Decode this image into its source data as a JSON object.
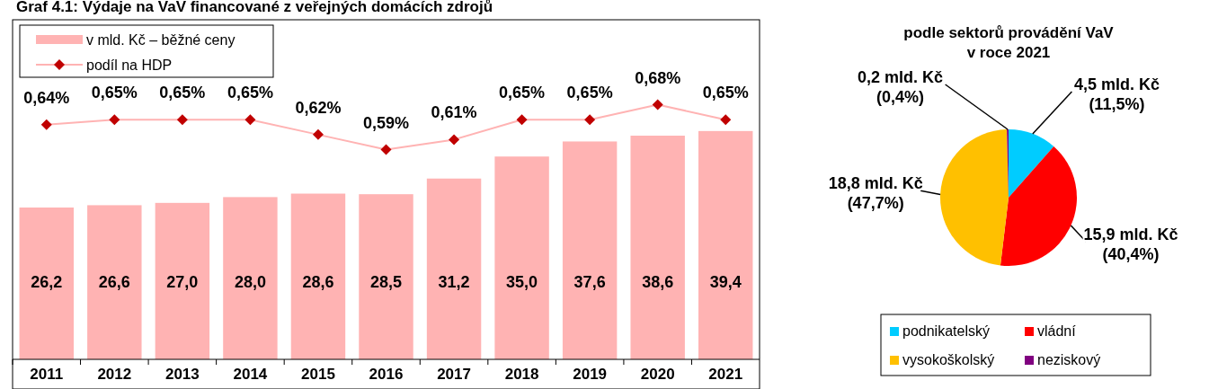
{
  "chart_data": [
    {
      "type": "bar",
      "title": "Graf 4.1: Výdaje na VaV financované z veřejných domácích zdrojů",
      "categories": [
        "2011",
        "2012",
        "2013",
        "2014",
        "2015",
        "2016",
        "2017",
        "2018",
        "2019",
        "2020",
        "2021"
      ],
      "series": [
        {
          "name": "v mld. Kč – běžné ceny",
          "type": "bar",
          "color": "#ffb3b3",
          "values": [
            26.2,
            26.6,
            27.0,
            28.0,
            28.6,
            28.5,
            31.2,
            35.0,
            37.6,
            38.6,
            39.4
          ],
          "value_labels": [
            "26,2",
            "26,6",
            "27,0",
            "28,0",
            "28,6",
            "28,5",
            "31,2",
            "35,0",
            "37,6",
            "38,6",
            "39,4"
          ]
        },
        {
          "name": "podíl na HDP",
          "type": "line",
          "axis": "y2",
          "color": "#ffb3b3",
          "colors": [
            "#c00000",
            "#c00000",
            "#c00000",
            "#c00000",
            "#c00000",
            "#c00000",
            "#c00000",
            "#c00000",
            "#c00000",
            "#c00000",
            "#c00000"
          ],
          "marker": "diamond",
          "values": [
            0.64,
            0.65,
            0.65,
            0.65,
            0.62,
            0.59,
            0.61,
            0.65,
            0.65,
            0.68,
            0.65
          ],
          "value_labels": [
            "0,64%",
            "0,65%",
            "0,65%",
            "0,65%",
            "0,62%",
            "0,59%",
            "0,61%",
            "0,65%",
            "0,65%",
            "0,68%",
            "0,65%"
          ]
        }
      ],
      "ylim": [
        0,
        58.6
      ],
      "y2lim": [
        0.17,
        0.85
      ],
      "tick_labels": "x",
      "legend": "top left"
    },
    {
      "type": "pie",
      "title": "podle sektorů provádění VaV\nv roce 2021",
      "categories": [
        "podnikatelský",
        "vládní",
        "vysokoškolský",
        "neziskový"
      ],
      "values": [
        11.5,
        40.4,
        47.7,
        0.4
      ],
      "colors": [
        "#00ccff",
        "#ff0000",
        "#ffc000",
        "#800080"
      ],
      "value_labels": [
        "4,5 mld. Kč\n(11,5%)",
        "15,9 mld. Kč\n(40,4%)",
        "18,8 mld. Kč\n(47,7%)",
        "0,2 mld. Kč\n(0,4%)"
      ],
      "legend": "bottom"
    }
  ]
}
